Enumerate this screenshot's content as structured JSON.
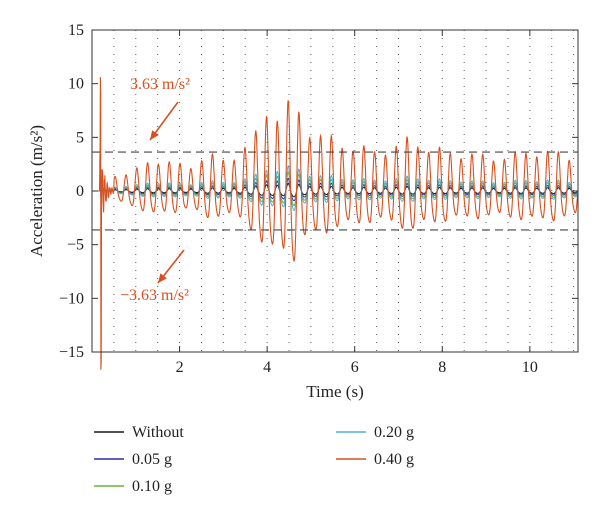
{
  "chart_data": {
    "type": "line",
    "xlabel": "Time (s)",
    "ylabel": "Acceleration (m/s²)",
    "xlim": [
      0,
      11.1
    ],
    "ylim": [
      -15,
      15
    ],
    "x_ticks": [
      2,
      4,
      6,
      8,
      10
    ],
    "y_ticks": [
      -15,
      -10,
      -5,
      0,
      5,
      10,
      15
    ],
    "x_tick_labels": [
      "2",
      "4",
      "6",
      "8",
      "10"
    ],
    "y_tick_labels": [
      "−15",
      "−10",
      "−5",
      "0",
      "5",
      "10",
      "15"
    ],
    "grid": "dotted",
    "threshold": 3.63,
    "annotations": [
      {
        "text": "3.63 m/s²",
        "value": 3.63
      },
      {
        "text": "−3.63 m/s²",
        "value": -3.63
      }
    ],
    "legend_placement": "bottom",
    "series": [
      {
        "name": "Without",
        "color": "#1a1a1a",
        "peak_amplitude": 0.6
      },
      {
        "name": "0.05 g",
        "color": "#2b2bb0",
        "peak_amplitude": 1.0
      },
      {
        "name": "0.10 g",
        "color": "#6bb33a",
        "peak_amplitude": 1.5
      },
      {
        "name": "0.20 g",
        "color": "#4fb3cf",
        "peak_amplitude": 2.0
      },
      {
        "name": "0.40 g",
        "color": "#d9501e",
        "peak_amplitude": 7.2,
        "max": 10.5,
        "min": -13.8
      }
    ],
    "key_points_0_40g": [
      {
        "x": 0.2,
        "y": 10.5
      },
      {
        "x": 0.21,
        "y": -13.8
      },
      {
        "x": 3.9,
        "y": 5.8
      },
      {
        "x": 4.0,
        "y": -8.0
      },
      {
        "x": 4.6,
        "y": 7.1
      },
      {
        "x": 5.0,
        "y": 4.6
      },
      {
        "x": 7.3,
        "y": 4.4
      }
    ]
  }
}
